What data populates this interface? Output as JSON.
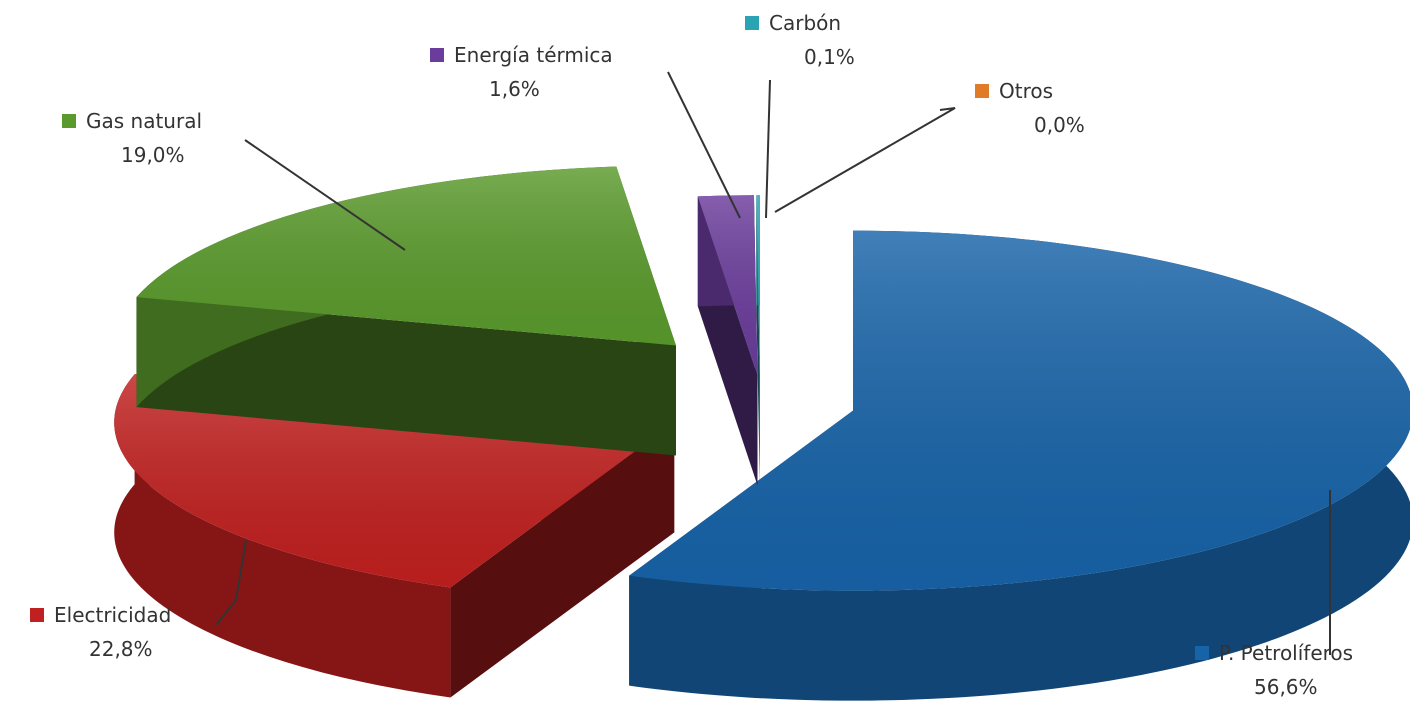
{
  "chart_data": {
    "type": "pie",
    "three_d": true,
    "exploded": true,
    "label_position": "outside with leader lines",
    "slices": [
      {
        "label": "P. Petrolíferos",
        "value": 56.6,
        "value_label": "56,6%",
        "color": "#1763a8"
      },
      {
        "label": "Electricidad",
        "value": 22.8,
        "value_label": "22,8%",
        "color": "#c0201f"
      },
      {
        "label": "Gas natural",
        "value": 19.0,
        "value_label": "19,0%",
        "color": "#5a9a2c"
      },
      {
        "label": "Energía térmica",
        "value": 1.6,
        "value_label": "1,6%",
        "color": "#6a3c9b"
      },
      {
        "label": "Carbón",
        "value": 0.1,
        "value_label": "0,1%",
        "color": "#2aa3b5"
      },
      {
        "label": "Otros",
        "value": 0.0,
        "value_label": "0,0%",
        "color": "#e07b28"
      }
    ]
  }
}
